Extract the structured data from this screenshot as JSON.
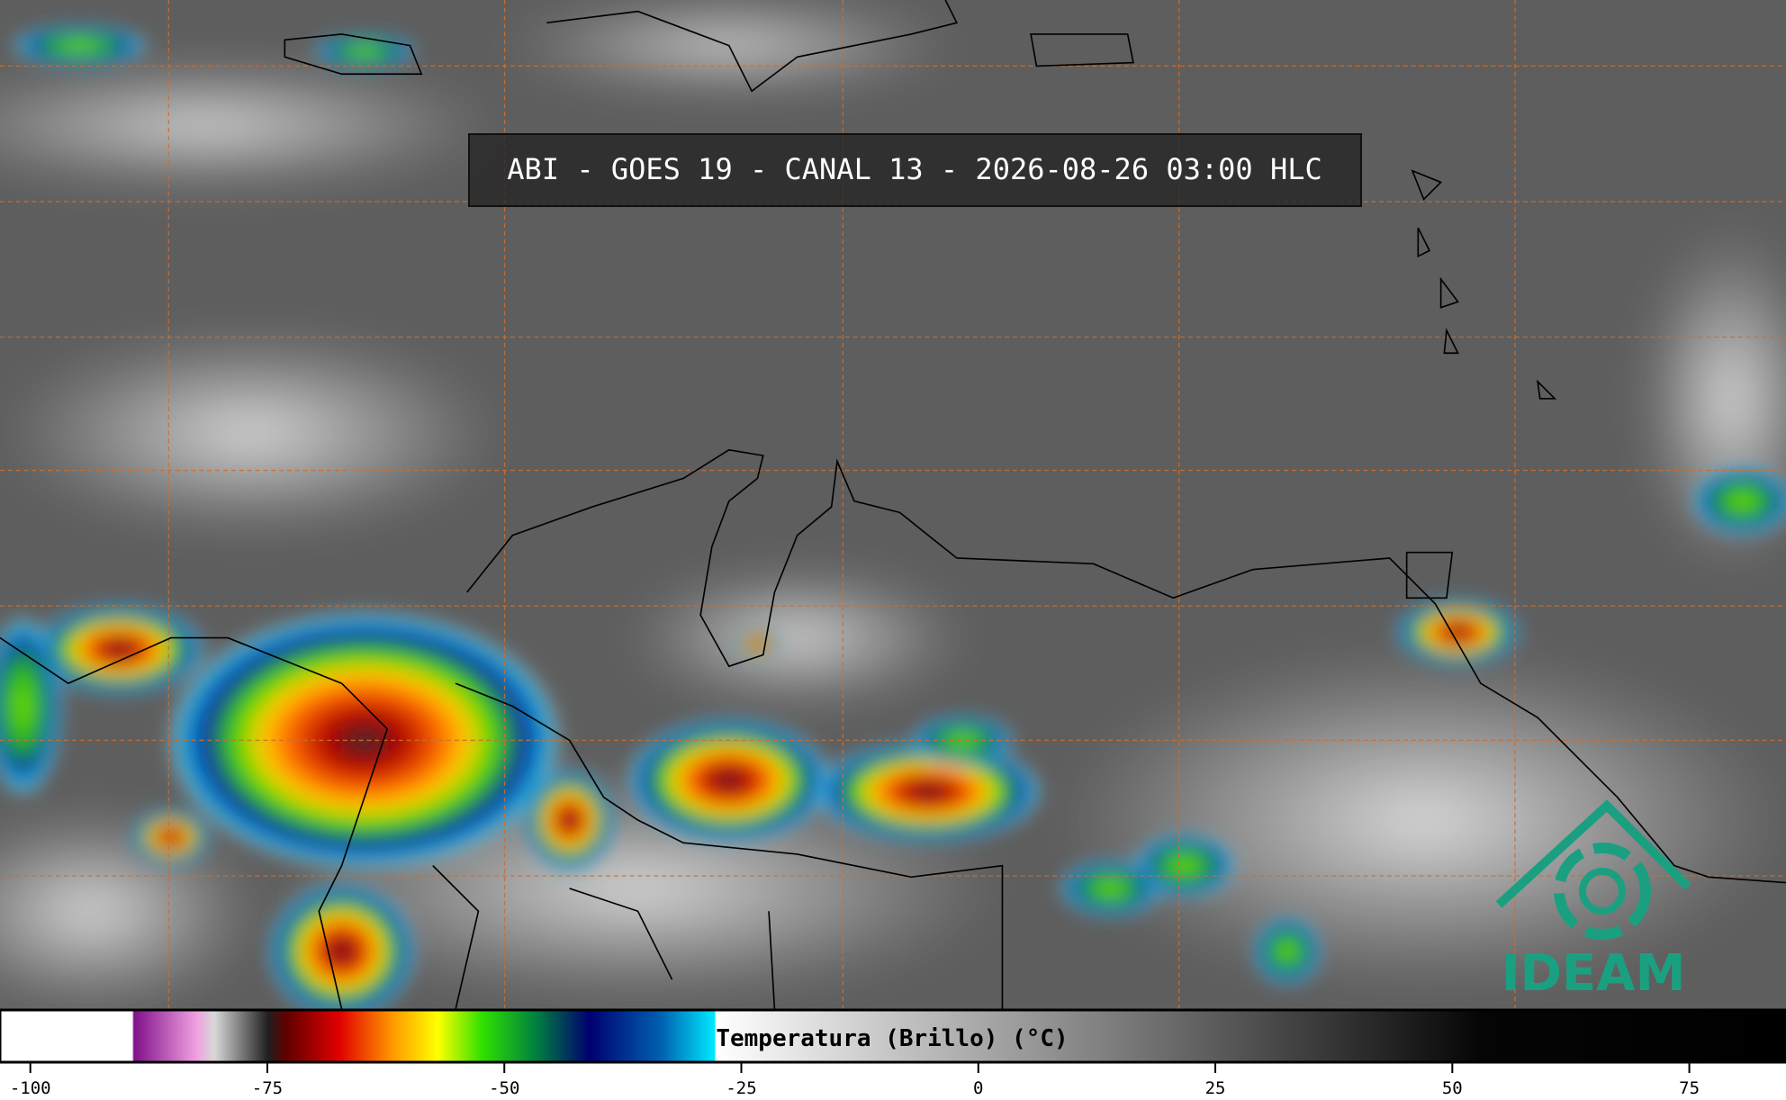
{
  "title": "ABI - GOES 19 - CANAL 13 - 2026-08-26 03:00 HLC",
  "logo": {
    "text": "IDEAM"
  },
  "colorbar": {
    "label": "Temperatura (Brillo) (°C)",
    "lim": [
      -103.2,
      85.2
    ],
    "ticks": [
      -100,
      -75,
      -50,
      -25,
      0,
      25,
      50,
      75
    ]
  }
}
